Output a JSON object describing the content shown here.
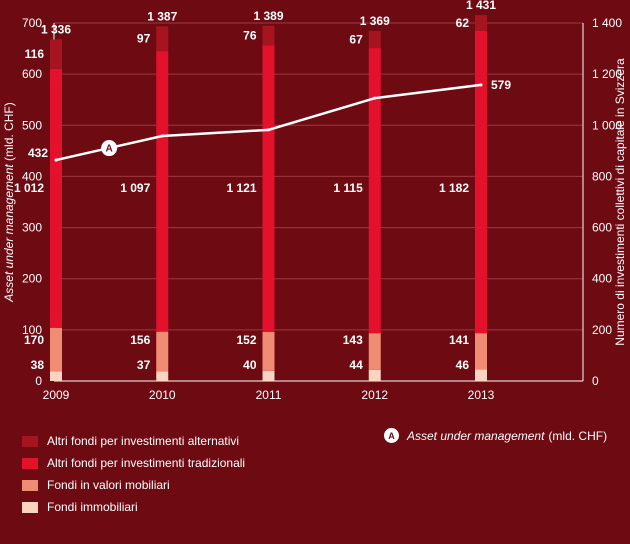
{
  "chart_data": {
    "type": "bar",
    "categories": [
      "2009",
      "2010",
      "2011",
      "2012",
      "2013"
    ],
    "stack_order": [
      "Fondi immobiliari",
      "Fondi in valori mobiliari",
      "Altri fondi per investimenti tradizionali",
      "Altri fondi per investimenti alternativi"
    ],
    "series": [
      {
        "name": "Altri fondi per investimenti alternativi",
        "axis": "right",
        "color": "#a5141f",
        "values": [
          116,
          97,
          76,
          67,
          62
        ]
      },
      {
        "name": "Altri fondi per investimenti tradizionali",
        "axis": "right",
        "color": "#e4112d",
        "values": [
          1012,
          1097,
          1121,
          1115,
          1182
        ]
      },
      {
        "name": "Fondi in valori mobiliari",
        "axis": "right",
        "color": "#f08c74",
        "values": [
          170,
          156,
          152,
          143,
          141
        ]
      },
      {
        "name": "Fondi immobiliari",
        "axis": "right",
        "color": "#fbd3c1",
        "values": [
          38,
          37,
          40,
          44,
          46
        ]
      }
    ],
    "totals": [
      "1 336",
      "1 387",
      "1 389",
      "1 369",
      "1 431"
    ],
    "value_labels": {
      "Altri fondi per investimenti alternativi": [
        "116",
        "97",
        "76",
        "67",
        "62"
      ],
      "Altri fondi per investimenti tradizionali": [
        "1 012",
        "1 097",
        "1 121",
        "1 115",
        "1 182"
      ],
      "Fondi in valori mobiliari": [
        "170",
        "156",
        "152",
        "143",
        "141"
      ],
      "Fondi immobiliari": [
        "38",
        "37",
        "40",
        "44",
        "46"
      ]
    },
    "line": {
      "name": "Asset under management",
      "axis": "left",
      "marker": "A",
      "values": [
        432,
        479,
        491,
        553,
        579
      ],
      "labels": [
        "432",
        "",
        "",
        "",
        "579"
      ]
    },
    "y_left": {
      "label_italic": "Asset under management",
      "label_unit": "(mld. CHF)",
      "range": [
        0,
        700
      ],
      "ticks": [
        0,
        100,
        200,
        300,
        400,
        500,
        600,
        700
      ],
      "tick_labels": [
        "0",
        "100",
        "200",
        "300",
        "400",
        "500",
        "600",
        "700"
      ]
    },
    "y_right": {
      "label": "Numero di investimenti collettivi di capitale in Svizzera",
      "range": [
        0,
        1400
      ],
      "ticks": [
        0,
        200,
        400,
        600,
        800,
        1000,
        1200,
        1400
      ],
      "tick_labels": [
        "0",
        "200",
        "400",
        "600",
        "800",
        "1 000",
        "1 200",
        "1 400"
      ]
    },
    "grid": true,
    "legend_position": "bottom-left"
  },
  "legend": {
    "items": [
      {
        "label": "Altri fondi per investimenti alternativi",
        "color": "#a5141f"
      },
      {
        "label": "Altri fondi per investimenti tradizionali",
        "color": "#e4112d"
      },
      {
        "label": "Fondi in valori mobiliari",
        "color": "#f08c74"
      },
      {
        "label": "Fondi immobiliari",
        "color": "#fbd3c1"
      }
    ],
    "line_marker": "A",
    "line_label": "Asset under management",
    "line_unit": "(mld. CHF)"
  },
  "colors": {
    "background": "#6e0a12",
    "grid": "#9a3a40",
    "text": "#ffffff",
    "line": "#ffffff"
  }
}
